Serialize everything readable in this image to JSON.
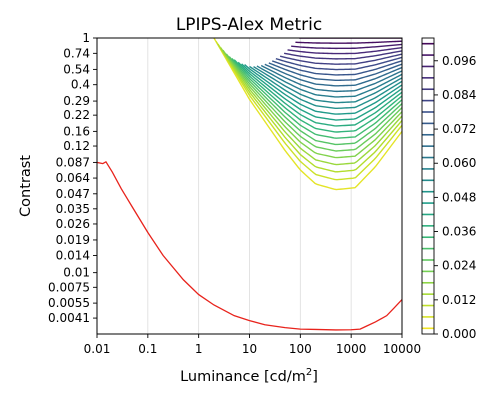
{
  "chart_data": {
    "type": "contour",
    "title": "LPIPS-Alex Metric",
    "xlabel": "Luminance [cd/m",
    "xlabel_superscript": "2",
    "xlabel_suffix": "]",
    "ylabel": "Contrast",
    "x_scale": "log",
    "y_scale": "log",
    "xlim": [
      0.01,
      10000
    ],
    "ylim": [
      0.003,
      1.0
    ],
    "x_ticks": [
      {
        "value": 0.01,
        "label": "0.01"
      },
      {
        "value": 0.1,
        "label": "0.1"
      },
      {
        "value": 1,
        "label": "1"
      },
      {
        "value": 10,
        "label": "10"
      },
      {
        "value": 100,
        "label": "100"
      },
      {
        "value": 1000,
        "label": "1000"
      },
      {
        "value": 10000,
        "label": "10000"
      }
    ],
    "y_ticks": [
      {
        "value": 1.0,
        "label": "1"
      },
      {
        "value": 0.74,
        "label": "0.74"
      },
      {
        "value": 0.54,
        "label": "0.54"
      },
      {
        "value": 0.4,
        "label": "0.4"
      },
      {
        "value": 0.29,
        "label": "0.29"
      },
      {
        "value": 0.22,
        "label": "0.22"
      },
      {
        "value": 0.16,
        "label": "0.16"
      },
      {
        "value": 0.12,
        "label": "0.12"
      },
      {
        "value": 0.087,
        "label": "0.087"
      },
      {
        "value": 0.064,
        "label": "0.064"
      },
      {
        "value": 0.047,
        "label": "0.047"
      },
      {
        "value": 0.035,
        "label": "0.035"
      },
      {
        "value": 0.026,
        "label": "0.026"
      },
      {
        "value": 0.019,
        "label": "0.019"
      },
      {
        "value": 0.014,
        "label": "0.014"
      },
      {
        "value": 0.01,
        "label": "0.01"
      },
      {
        "value": 0.0075,
        "label": "0.0075"
      },
      {
        "value": 0.0055,
        "label": "0.0055"
      },
      {
        "value": 0.0041,
        "label": "0.0041"
      }
    ],
    "vertical_grid": true,
    "contours": {
      "levels_from": 0.004,
      "level_step": 0.004,
      "level_count": 26,
      "bottom_envelope": [
        [
          2,
          1.0
        ],
        [
          10,
          0.3
        ],
        [
          50,
          0.11
        ],
        [
          100,
          0.075
        ],
        [
          200,
          0.057
        ],
        [
          500,
          0.051
        ],
        [
          1200,
          0.053
        ],
        [
          3000,
          0.08
        ],
        [
          10000,
          0.16
        ]
      ],
      "top_envelope_x_start": [
        2,
        2.2,
        2.4,
        2.7,
        3,
        3.5,
        4,
        4.5,
        5,
        6,
        7,
        8,
        10,
        12,
        14,
        17,
        20,
        24,
        28,
        33,
        40,
        48,
        56,
        66,
        80,
        95
      ],
      "min_point": [
        1000,
        1.0
      ]
    },
    "threshold_line": {
      "color": "#e8231c",
      "points": [
        [
          0.01,
          0.087
        ],
        [
          0.013,
          0.085
        ],
        [
          0.015,
          0.088
        ],
        [
          0.02,
          0.072
        ],
        [
          0.03,
          0.052
        ],
        [
          0.05,
          0.036
        ],
        [
          0.1,
          0.022
        ],
        [
          0.2,
          0.014
        ],
        [
          0.5,
          0.0087
        ],
        [
          1,
          0.0065
        ],
        [
          2,
          0.0053
        ],
        [
          5,
          0.0043
        ],
        [
          10,
          0.0039
        ],
        [
          20,
          0.0036
        ],
        [
          50,
          0.0034
        ],
        [
          100,
          0.0033
        ],
        [
          200,
          0.00328
        ],
        [
          500,
          0.00325
        ],
        [
          1000,
          0.00326
        ],
        [
          1500,
          0.0033
        ],
        [
          2000,
          0.0035
        ],
        [
          3000,
          0.0038
        ],
        [
          5000,
          0.0043
        ],
        [
          7000,
          0.005
        ],
        [
          10000,
          0.0059
        ]
      ]
    },
    "colorbar": {
      "min": 0.0,
      "max": 0.104,
      "ticks": [
        {
          "value": 0.0,
          "label": "0.000"
        },
        {
          "value": 0.012,
          "label": "0.012"
        },
        {
          "value": 0.024,
          "label": "0.024"
        },
        {
          "value": 0.036,
          "label": "0.036"
        },
        {
          "value": 0.048,
          "label": "0.048"
        },
        {
          "value": 0.06,
          "label": "0.060"
        },
        {
          "value": 0.072,
          "label": "0.072"
        },
        {
          "value": 0.084,
          "label": "0.084"
        },
        {
          "value": 0.096,
          "label": "0.096"
        }
      ],
      "colormap": "viridis_reversed",
      "colormap_stops": [
        "#fde725",
        "#b5de2b",
        "#6ece58",
        "#35b779",
        "#1f9e89",
        "#26828e",
        "#31688e",
        "#3e4989",
        "#482878",
        "#440154"
      ]
    }
  }
}
